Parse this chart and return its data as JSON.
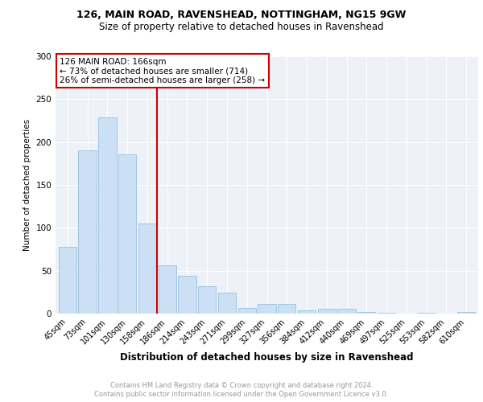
{
  "title1": "126, MAIN ROAD, RAVENSHEAD, NOTTINGHAM, NG15 9GW",
  "title2": "Size of property relative to detached houses in Ravenshead",
  "xlabel": "Distribution of detached houses by size in Ravenshead",
  "ylabel": "Number of detached properties",
  "categories": [
    "45sqm",
    "73sqm",
    "101sqm",
    "130sqm",
    "158sqm",
    "186sqm",
    "214sqm",
    "243sqm",
    "271sqm",
    "299sqm",
    "327sqm",
    "356sqm",
    "384sqm",
    "412sqm",
    "440sqm",
    "469sqm",
    "497sqm",
    "525sqm",
    "553sqm",
    "582sqm",
    "610sqm"
  ],
  "values": [
    78,
    190,
    229,
    186,
    105,
    56,
    44,
    32,
    24,
    7,
    11,
    11,
    4,
    6,
    6,
    2,
    1,
    0,
    1,
    0,
    2
  ],
  "bar_color": "#cce0f5",
  "bar_edge_color": "#8ab8d8",
  "vline_x": 4.5,
  "vline_color": "#cc0000",
  "annotation_line1": "126 MAIN ROAD: 166sqm",
  "annotation_line2": "← 73% of detached houses are smaller (714)",
  "annotation_line3": "26% of semi-detached houses are larger (258) →",
  "box_color": "#cc0000",
  "ylim": [
    0,
    300
  ],
  "yticks": [
    0,
    50,
    100,
    150,
    200,
    250,
    300
  ],
  "footer_line1": "Contains HM Land Registry data © Crown copyright and database right 2024.",
  "footer_line2": "Contains public sector information licensed under the Open Government Licence v3.0.",
  "background_color": "#eef2f8",
  "grid_color": "#ffffff"
}
